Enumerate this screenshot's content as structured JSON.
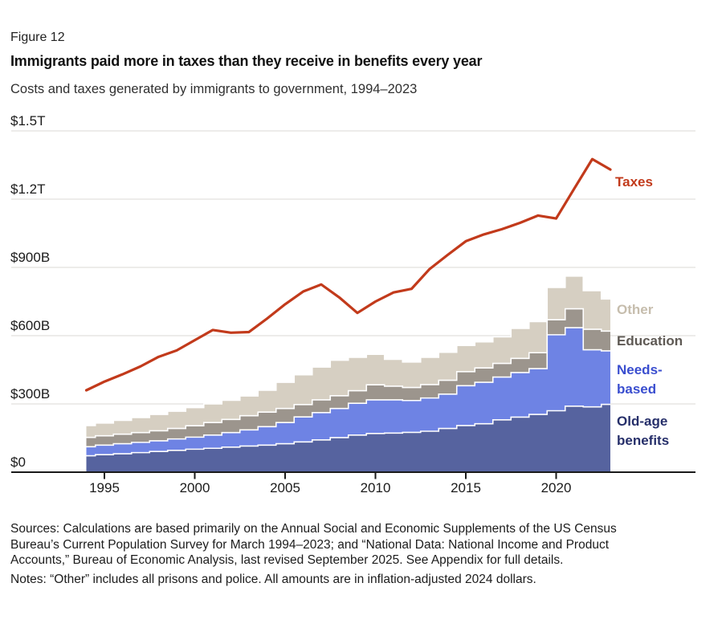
{
  "page": {
    "figure_label": "Figure 12",
    "title": "Immigrants paid more in taxes than they receive in benefits every year",
    "subtitle": "Costs and taxes generated by immigrants to government, 1994–2023",
    "sources": "Sources: Calculations are based primarily on the Annual Social and Economic Supplements of the US Census Bureau’s Current Population Survey for March 1994–2023; and “National Data: National Income and Product Accounts,” Bureau of Economic Analysis, last revised September 2025. See Appendix for full details.",
    "notes": "Notes: “Other” includes all prisons and police. All amounts are in inflation-adjusted 2024 dollars."
  },
  "chart_data": {
    "type": "combo: stacked step-area + line",
    "title": "Immigrants paid more in taxes than they receive in benefits every year",
    "subtitle": "Costs and taxes generated by immigrants to government, 1994–2023",
    "unit": "billions of inflation-adjusted 2024 US dollars",
    "grid": "horizontal gridlines on",
    "legend_position": "right of plot, inline with series",
    "ylim": [
      0,
      1500
    ],
    "x": [
      1994,
      1995,
      1996,
      1997,
      1998,
      1999,
      2000,
      2001,
      2002,
      2003,
      2004,
      2005,
      2006,
      2007,
      2008,
      2009,
      2010,
      2011,
      2012,
      2013,
      2014,
      2015,
      2016,
      2017,
      2018,
      2019,
      2020,
      2021,
      2022,
      2023
    ],
    "x_ticks": [
      "1995",
      "2000",
      "2005",
      "2010",
      "2015",
      "2020"
    ],
    "x_tick_years": [
      1995,
      2000,
      2005,
      2010,
      2015,
      2020
    ],
    "y_ticks": [
      {
        "value": 0,
        "label": "$0"
      },
      {
        "value": 300,
        "label": "$300B"
      },
      {
        "value": 600,
        "label": "$600B"
      },
      {
        "value": 900,
        "label": "$900B"
      },
      {
        "value": 1200,
        "label": "$1.2T"
      },
      {
        "value": 1500,
        "label": "$1.5T"
      }
    ],
    "stacked_series": [
      {
        "name": "Old-age benefits",
        "color": "#56639f",
        "label_color": "#262f6a",
        "values": [
          72,
          77,
          81,
          86,
          91,
          96,
          101,
          105,
          110,
          115,
          119,
          125,
          133,
          142,
          152,
          163,
          170,
          172,
          175,
          180,
          192,
          205,
          213,
          230,
          242,
          254,
          270,
          290,
          287,
          298
        ]
      },
      {
        "name": "Needs-based",
        "color": "#6e83e4",
        "label_color": "#3a4ecf",
        "values": [
          40,
          42,
          44,
          45,
          47,
          50,
          53,
          58,
          64,
          71,
          81,
          93,
          110,
          120,
          128,
          140,
          148,
          146,
          140,
          146,
          151,
          175,
          182,
          188,
          196,
          201,
          334,
          345,
          251,
          235
        ]
      },
      {
        "name": "Education",
        "color": "#9c958d",
        "label_color": "#5e5954",
        "values": [
          41,
          41,
          42,
          43,
          44,
          46,
          50,
          55,
          58,
          62,
          64,
          62,
          54,
          56,
          56,
          55,
          66,
          60,
          57,
          59,
          61,
          62,
          63,
          60,
          62,
          70,
          66,
          83,
          90,
          87
        ]
      },
      {
        "name": "Other",
        "color": "#d6cfc2",
        "label_color": "#c6bdad",
        "values": [
          52,
          56,
          61,
          66,
          72,
          76,
          80,
          82,
          84,
          87,
          96,
          115,
          131,
          144,
          156,
          147,
          134,
          118,
          112,
          120,
          123,
          115,
          115,
          117,
          132,
          137,
          142,
          144,
          170,
          141
        ]
      }
    ],
    "line_series": {
      "name": "Taxes",
      "color": "#c23a1b",
      "values": [
        360,
        398,
        430,
        465,
        507,
        535,
        580,
        625,
        613,
        616,
        675,
        738,
        794,
        825,
        768,
        700,
        750,
        790,
        806,
        893,
        955,
        1015,
        1045,
        1068,
        1096,
        1128,
        1115,
        1246,
        1376,
        1330
      ]
    },
    "axis_color": "#1a1a1a",
    "gridline_color": "#e7e6e4"
  }
}
